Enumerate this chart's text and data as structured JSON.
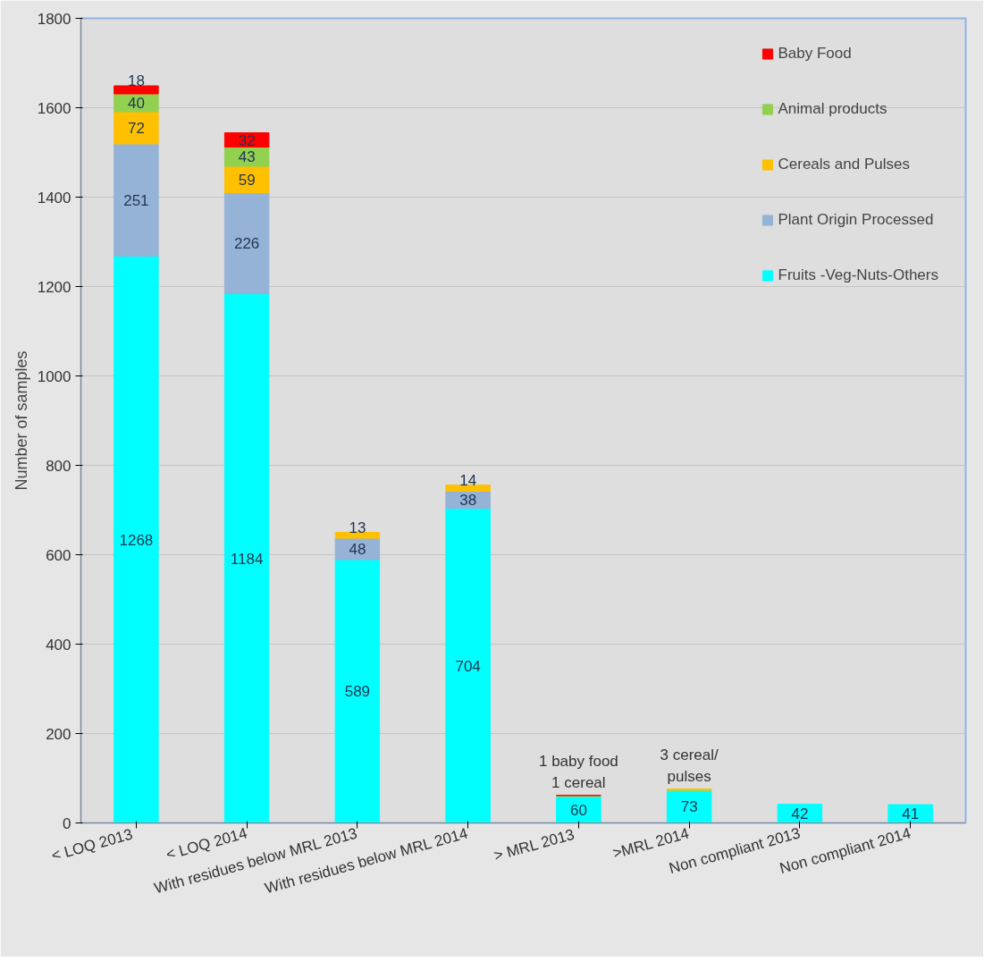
{
  "chart_data": {
    "type": "bar",
    "stacked": true,
    "ylabel": "Number of samples",
    "categories": [
      "< LOQ  2013",
      "< LOQ 2014",
      "With residues below MRL 2013",
      "With residues below MRL 2014",
      "> MRL  2013",
      ">MRL 2014",
      "Non compliant 2013",
      "Non compliant 2014"
    ],
    "series": [
      {
        "name": "Fruits -Veg-Nuts-Others",
        "color": "#00ffff",
        "values": [
          1268,
          1184,
          589,
          704,
          60,
          73,
          42,
          41
        ],
        "value_labels": [
          "1268",
          "1184",
          "589",
          "704",
          "60",
          "73",
          "42",
          "41"
        ]
      },
      {
        "name": "Plant Origin Processed",
        "color": "#95b3d7",
        "values": [
          251,
          226,
          48,
          38,
          null,
          null,
          null,
          null
        ],
        "value_labels": [
          "251",
          "226",
          "48",
          "38",
          null,
          null,
          null,
          null
        ]
      },
      {
        "name": "Cereals and Pulses",
        "color": "#ffc000",
        "values": [
          72,
          59,
          13,
          14,
          1,
          3,
          null,
          null
        ],
        "value_labels": [
          "72",
          "59",
          "13",
          "14",
          null,
          null,
          null,
          null
        ]
      },
      {
        "name": "Animal products",
        "color": "#92d050",
        "values": [
          40,
          43,
          null,
          null,
          null,
          null,
          null,
          null
        ],
        "value_labels": [
          "40",
          "43",
          null,
          null,
          null,
          null,
          null,
          null
        ]
      },
      {
        "name": "Baby Food",
        "color": "#ff0000",
        "values": [
          18,
          32,
          null,
          null,
          1,
          null,
          null,
          null
        ],
        "value_labels": [
          "18",
          "32",
          null,
          null,
          null,
          null,
          null,
          null
        ]
      }
    ],
    "annotations": [
      {
        "text": "1 baby food\n1 cereal",
        "x": "> MRL  2013",
        "y": 62
      },
      {
        "text": "3 cereal/\npulses",
        "x": ">MRL 2014",
        "y": 76
      }
    ],
    "ylim": [
      0,
      1800
    ],
    "yticks": [
      0,
      200,
      400,
      600,
      800,
      1000,
      1200,
      1400,
      1600,
      1800
    ],
    "grid": "y",
    "legend": "top right"
  }
}
